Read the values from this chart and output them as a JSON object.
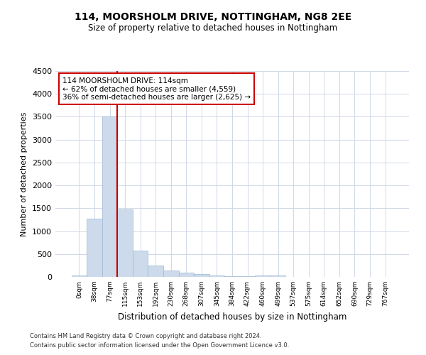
{
  "title1": "114, MOORSHOLM DRIVE, NOTTINGHAM, NG8 2EE",
  "title2": "Size of property relative to detached houses in Nottingham",
  "xlabel": "Distribution of detached houses by size in Nottingham",
  "ylabel": "Number of detached properties",
  "bin_labels": [
    "0sqm",
    "38sqm",
    "77sqm",
    "115sqm",
    "153sqm",
    "192sqm",
    "230sqm",
    "268sqm",
    "307sqm",
    "345sqm",
    "384sqm",
    "422sqm",
    "460sqm",
    "499sqm",
    "537sqm",
    "575sqm",
    "614sqm",
    "652sqm",
    "690sqm",
    "729sqm",
    "767sqm"
  ],
  "bar_heights": [
    30,
    1270,
    3500,
    1480,
    580,
    250,
    140,
    90,
    60,
    25,
    20,
    10,
    30,
    30,
    0,
    0,
    0,
    0,
    0,
    0,
    0
  ],
  "bar_color": "#ccdaeb",
  "bar_edge_color": "#9db8d2",
  "vline_color": "#cc0000",
  "vline_x_index": 3,
  "ylim": [
    0,
    4500
  ],
  "yticks": [
    0,
    500,
    1000,
    1500,
    2000,
    2500,
    3000,
    3500,
    4000,
    4500
  ],
  "annotation_text": "114 MOORSHOLM DRIVE: 114sqm\n← 62% of detached houses are smaller (4,559)\n36% of semi-detached houses are larger (2,625) →",
  "annotation_box_color": "#ffffff",
  "annotation_border_color": "#cc0000",
  "footer1": "Contains HM Land Registry data © Crown copyright and database right 2024.",
  "footer2": "Contains public sector information licensed under the Open Government Licence v3.0.",
  "background_color": "#ffffff",
  "grid_color": "#d0d8e8"
}
